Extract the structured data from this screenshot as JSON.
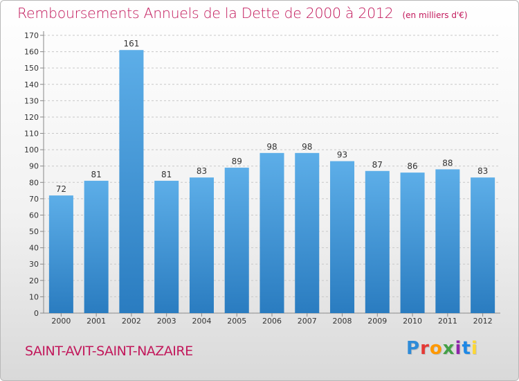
{
  "header": {
    "title": "Remboursements Annuels de la Dette de 2000 à 2012",
    "unit": "(en milliers d'€)"
  },
  "footer": {
    "commune": "SAINT-AVIT-SAINT-NAZAIRE",
    "logo_letters": [
      "P",
      "r",
      "o",
      "x",
      "i",
      "t",
      "i"
    ],
    "logo_colors": [
      "#2e8bd8",
      "#e53935",
      "#ff9800",
      "#43a047",
      "#8e24aa",
      "#1e88e5",
      "#fdd835"
    ]
  },
  "colors": {
    "bar_top": "#5daee8",
    "bar_bottom": "#2a7cc0",
    "accent": "#c2185b"
  },
  "chart_data": {
    "type": "bar",
    "title": "Remboursements Annuels de la Dette de 2000 à 2012",
    "subtitle": "(en milliers d'€)",
    "xlabel": "",
    "ylabel": "",
    "categories": [
      "2000",
      "2001",
      "2002",
      "2003",
      "2004",
      "2005",
      "2006",
      "2007",
      "2008",
      "2009",
      "2010",
      "2011",
      "2012"
    ],
    "values": [
      72,
      81,
      161,
      81,
      83,
      89,
      98,
      98,
      93,
      87,
      86,
      88,
      83
    ],
    "ylim": [
      0,
      170
    ],
    "yticks": [
      0,
      10,
      20,
      30,
      40,
      50,
      60,
      70,
      80,
      90,
      100,
      110,
      120,
      130,
      140,
      150,
      160,
      170
    ],
    "grid": true,
    "legend": "none"
  }
}
